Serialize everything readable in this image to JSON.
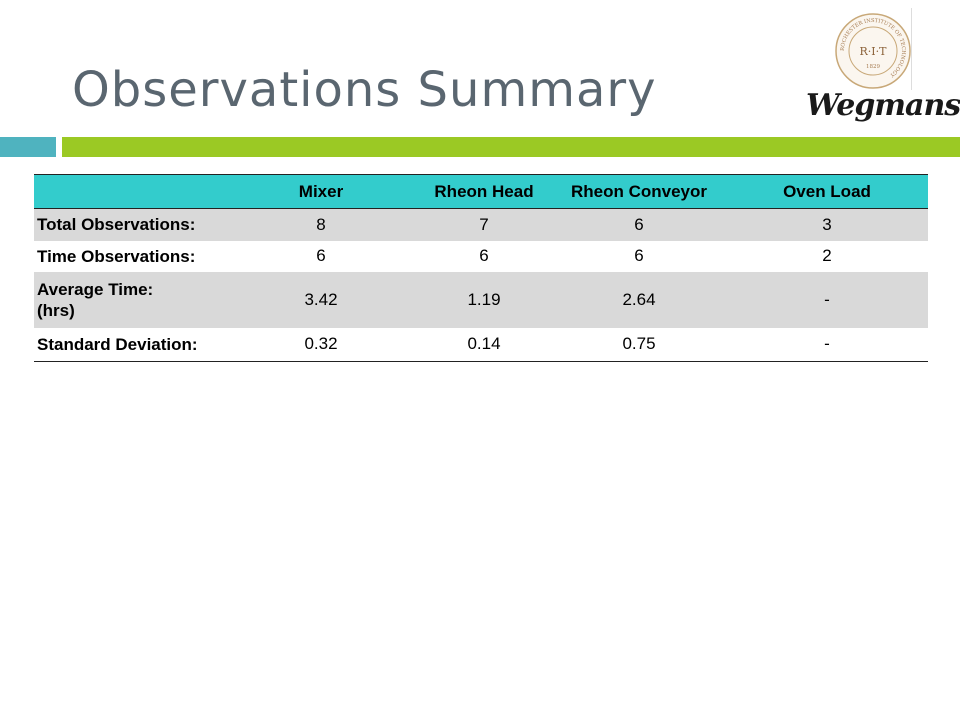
{
  "slide": {
    "title": "Observations Summary"
  },
  "logos": {
    "seal_text": "R·I·T",
    "seal_ring_text": "ROCHESTER INSTITUTE OF TECHNOLOGY",
    "seal_year": "1829",
    "wegmans": "Wegmans"
  },
  "table": {
    "headers": [
      "",
      "Mixer",
      "Rheon Head",
      "Rheon Conveyor",
      "Oven Load"
    ],
    "rows": [
      {
        "label": "Total Observations:",
        "values": [
          "8",
          "7",
          "6",
          "3"
        ]
      },
      {
        "label": "Time Observations:",
        "values": [
          "6",
          "6",
          "6",
          "2"
        ]
      },
      {
        "label_line1": "Average Time:",
        "label_line2": "(hrs)",
        "values": [
          "3.42",
          "1.19",
          "2.64",
          "-"
        ]
      },
      {
        "label": "Standard Deviation:",
        "values": [
          "0.32",
          "0.14",
          "0.75",
          "-"
        ]
      }
    ]
  },
  "colors": {
    "title": "#5a6670",
    "accent_teal": "#4fb3bf",
    "accent_green": "#9bc924",
    "header_fill": "#33cccc",
    "row_shade": "#d9d9d9"
  }
}
